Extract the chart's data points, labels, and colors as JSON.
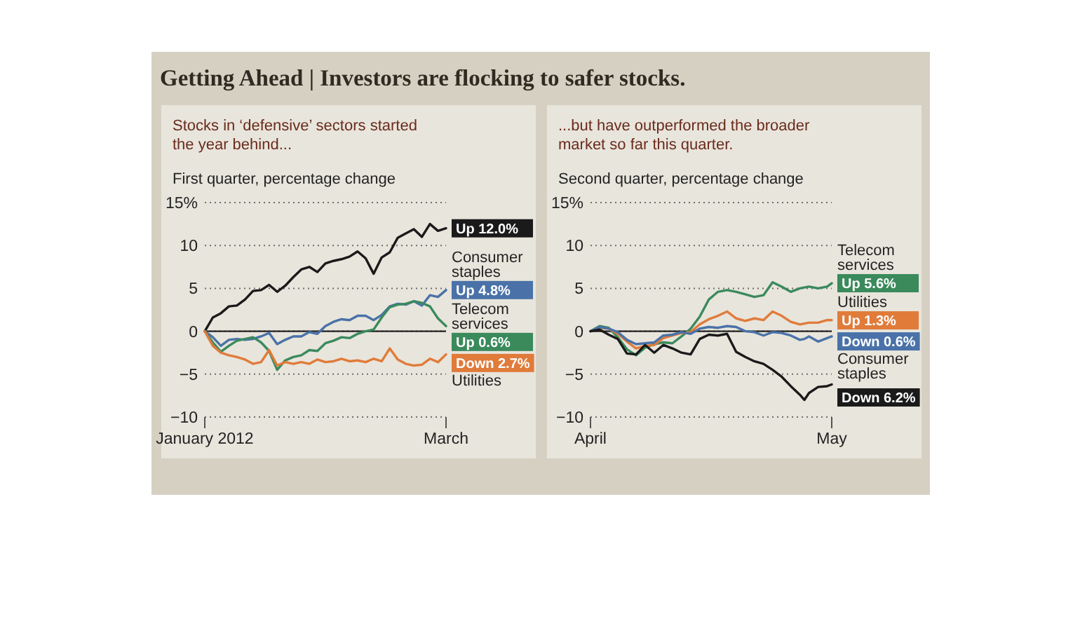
{
  "chart_data": [
    {
      "type": "line",
      "title": "Getting Ahead | Investors are flocking to safer stocks.",
      "subtitle": "Stocks in ‘defensive’ sectors started the year behind...",
      "ylabel": "First quarter, percentage change",
      "x": [
        "2012-01-01",
        "2012-01-04",
        "2012-01-07",
        "2012-01-10",
        "2012-01-13",
        "2012-01-16",
        "2012-01-19",
        "2012-01-22",
        "2012-01-25",
        "2012-01-28",
        "2012-01-31",
        "2012-02-03",
        "2012-02-06",
        "2012-02-09",
        "2012-02-12",
        "2012-02-15",
        "2012-02-18",
        "2012-02-21",
        "2012-02-24",
        "2012-02-27",
        "2012-03-01",
        "2012-03-04",
        "2012-03-07",
        "2012-03-10",
        "2012-03-13",
        "2012-03-16",
        "2012-03-19",
        "2012-03-22",
        "2012-03-25",
        "2012-03-28",
        "2012-03-31"
      ],
      "xlim": [
        "2012-01-01",
        "2012-03-31"
      ],
      "xticks": [
        {
          "value": "2012-01-01",
          "label": "January 2012"
        },
        {
          "value": "2012-03-31",
          "label": "March"
        }
      ],
      "ylim": [
        -10,
        15
      ],
      "yticks": [
        -10,
        -5,
        0,
        5,
        10,
        {
          "value": 15,
          "label": "15%"
        }
      ],
      "grid": "y",
      "legend": "right",
      "ref_lines": [
        {
          "axis": "y",
          "value": 0,
          "color": "#222222"
        }
      ],
      "series": [
        {
          "color": "#1a1a1a",
          "values": [
            0,
            1.6,
            2.1,
            2.9,
            3.0,
            3.7,
            4.7,
            4.8,
            5.4,
            4.6,
            5.3,
            6.3,
            7.2,
            7.5,
            6.9,
            7.9,
            8.2,
            8.4,
            8.7,
            9.3,
            8.5,
            6.7,
            8.6,
            9.2,
            10.9,
            11.4,
            11.9,
            11.0,
            12.5,
            11.7,
            12.0
          ],
          "value_labels": [
            null,
            null,
            null,
            null,
            null,
            null,
            null,
            null,
            null,
            null,
            null,
            null,
            null,
            null,
            null,
            null,
            null,
            null,
            null,
            null,
            null,
            null,
            null,
            null,
            null,
            null,
            null,
            null,
            null,
            null,
            "Up 12.0%"
          ]
        },
        {
          "name": "Consumer staples",
          "color": "#4a72a8",
          "values": [
            0,
            -0.7,
            -1.7,
            -1.0,
            -0.9,
            -1.0,
            -0.9,
            -0.6,
            -0.2,
            -1.5,
            -1.0,
            -0.6,
            -0.6,
            -0.1,
            -0.3,
            0.6,
            1.1,
            1.4,
            1.3,
            1.8,
            1.8,
            1.3,
            1.9,
            2.9,
            3.2,
            3.1,
            3.5,
            3.0,
            4.2,
            4.0,
            4.8
          ],
          "value_labels": [
            null,
            null,
            null,
            null,
            null,
            null,
            null,
            null,
            null,
            null,
            null,
            null,
            null,
            null,
            null,
            null,
            null,
            null,
            null,
            null,
            null,
            null,
            null,
            null,
            null,
            null,
            null,
            null,
            null,
            null,
            "Up 4.8%"
          ]
        },
        {
          "name": "Telecom services",
          "color": "#3a8a5c",
          "values": [
            0,
            -1.3,
            -2.4,
            -1.7,
            -1.1,
            -0.9,
            -0.7,
            -1.3,
            -2.3,
            -4.5,
            -3.4,
            -3.0,
            -2.8,
            -2.2,
            -2.3,
            -1.4,
            -1.1,
            -0.7,
            -0.8,
            -0.3,
            0.0,
            0.2,
            1.6,
            2.8,
            3.1,
            3.2,
            3.5,
            3.3,
            2.9,
            1.5,
            0.6
          ],
          "value_labels": [
            null,
            null,
            null,
            null,
            null,
            null,
            null,
            null,
            null,
            null,
            null,
            null,
            null,
            null,
            null,
            null,
            null,
            null,
            null,
            null,
            null,
            null,
            null,
            null,
            null,
            null,
            null,
            null,
            null,
            null,
            "Up 0.6%"
          ]
        },
        {
          "name": "Utilities",
          "color": "#e07b3a",
          "values": [
            0,
            -1.7,
            -2.5,
            -2.8,
            -3.0,
            -3.3,
            -3.8,
            -3.6,
            -2.2,
            -4.0,
            -3.6,
            -3.8,
            -3.6,
            -3.8,
            -3.3,
            -3.6,
            -3.5,
            -3.2,
            -3.5,
            -3.4,
            -3.6,
            -3.2,
            -3.5,
            -2.0,
            -3.3,
            -3.8,
            -4.0,
            -3.9,
            -3.2,
            -3.6,
            -2.7
          ],
          "value_labels": [
            null,
            null,
            null,
            null,
            null,
            null,
            null,
            null,
            null,
            null,
            null,
            null,
            null,
            null,
            null,
            null,
            null,
            null,
            null,
            null,
            null,
            null,
            null,
            null,
            null,
            null,
            null,
            null,
            null,
            null,
            "Down 2.7%"
          ]
        }
      ]
    },
    {
      "type": "line",
      "subtitle": "...but have outperformed the broader market so far this quarter.",
      "ylabel": "Second quarter, percentage change",
      "x": [
        "2012-04-01",
        "2012-04-03",
        "2012-04-05",
        "2012-04-07",
        "2012-04-09",
        "2012-04-11",
        "2012-04-13",
        "2012-04-15",
        "2012-04-17",
        "2012-04-19",
        "2012-04-21",
        "2012-04-23",
        "2012-04-25",
        "2012-04-27",
        "2012-04-29",
        "2012-05-01",
        "2012-05-03",
        "2012-05-05",
        "2012-05-07",
        "2012-05-09",
        "2012-05-11",
        "2012-05-13",
        "2012-05-15",
        "2012-05-17",
        "2012-05-18",
        "2012-05-19",
        "2012-05-21",
        "2012-05-23",
        "2012-05-24"
      ],
      "xlim": [
        "2012-04-01",
        "2012-05-24"
      ],
      "xticks": [
        {
          "value": "2012-04-01",
          "label": "April"
        },
        {
          "value": "2012-05-24",
          "label": "May"
        }
      ],
      "ylim": [
        -10,
        15
      ],
      "yticks": [
        -10,
        -5,
        0,
        5,
        10,
        {
          "value": 15,
          "label": "15%"
        }
      ],
      "grid": "y",
      "legend": "right",
      "ref_lines": [
        {
          "axis": "y",
          "value": 0,
          "color": "#222222"
        }
      ],
      "series": [
        {
          "name": "Telecom services",
          "color": "#3a8a5c",
          "values": [
            0,
            0.6,
            0.4,
            -0.7,
            -2.1,
            -2.8,
            -1.9,
            -1.5,
            -1.3,
            -1.4,
            -0.6,
            0.3,
            1.7,
            3.7,
            4.6,
            4.8,
            4.6,
            4.3,
            4.0,
            4.2,
            5.7,
            5.2,
            4.6,
            5.0,
            5.1,
            5.2,
            5.0,
            5.2,
            5.6
          ],
          "value_labels": [
            null,
            null,
            null,
            null,
            null,
            null,
            null,
            null,
            null,
            null,
            null,
            null,
            null,
            null,
            null,
            null,
            null,
            null,
            null,
            null,
            null,
            null,
            null,
            null,
            null,
            null,
            null,
            null,
            "Up 5.6%"
          ]
        },
        {
          "name": "Utilities",
          "color": "#e07b3a",
          "values": [
            0,
            0.4,
            0.3,
            -0.3,
            -1.2,
            -2.0,
            -1.7,
            -1.6,
            -0.8,
            -0.5,
            -0.2,
            -0.1,
            0.8,
            1.4,
            1.8,
            2.3,
            1.5,
            1.2,
            1.5,
            1.3,
            2.3,
            1.8,
            1.1,
            0.8,
            0.9,
            1.0,
            1.0,
            1.3,
            1.3
          ],
          "value_labels": [
            null,
            null,
            null,
            null,
            null,
            null,
            null,
            null,
            null,
            null,
            null,
            null,
            null,
            null,
            null,
            null,
            null,
            null,
            null,
            null,
            null,
            null,
            null,
            null,
            null,
            null,
            null,
            null,
            "Up 1.3%"
          ]
        },
        {
          "name": "Consumer staples",
          "color": "#4a72a8",
          "values": [
            0,
            0.5,
            0.3,
            -0.1,
            -1.0,
            -1.5,
            -1.4,
            -1.3,
            -0.5,
            -0.4,
            -0.1,
            -0.3,
            0.3,
            0.5,
            0.4,
            0.6,
            0.5,
            0.0,
            -0.1,
            -0.5,
            -0.1,
            -0.2,
            -0.5,
            -1.0,
            -0.9,
            -0.6,
            -1.2,
            -0.8,
            -0.6
          ],
          "value_labels": [
            null,
            null,
            null,
            null,
            null,
            null,
            null,
            null,
            null,
            null,
            null,
            null,
            null,
            null,
            null,
            null,
            null,
            null,
            null,
            null,
            null,
            null,
            null,
            null,
            null,
            null,
            null,
            null,
            "Down 0.6%"
          ]
        },
        {
          "color": "#1a1a1a",
          "values": [
            0,
            0.2,
            -0.4,
            -0.9,
            -2.6,
            -2.7,
            -1.6,
            -2.5,
            -1.6,
            -2.0,
            -2.5,
            -2.7,
            -0.9,
            -0.4,
            -0.5,
            -0.3,
            -2.4,
            -3.0,
            -3.5,
            -3.8,
            -4.5,
            -5.3,
            -6.4,
            -7.4,
            -8.0,
            -7.2,
            -6.5,
            -6.4,
            -6.2
          ],
          "value_labels": [
            null,
            null,
            null,
            null,
            null,
            null,
            null,
            null,
            null,
            null,
            null,
            null,
            null,
            null,
            null,
            null,
            null,
            null,
            null,
            null,
            null,
            null,
            null,
            null,
            null,
            null,
            null,
            null,
            "Down 6.2%"
          ]
        }
      ]
    }
  ]
}
